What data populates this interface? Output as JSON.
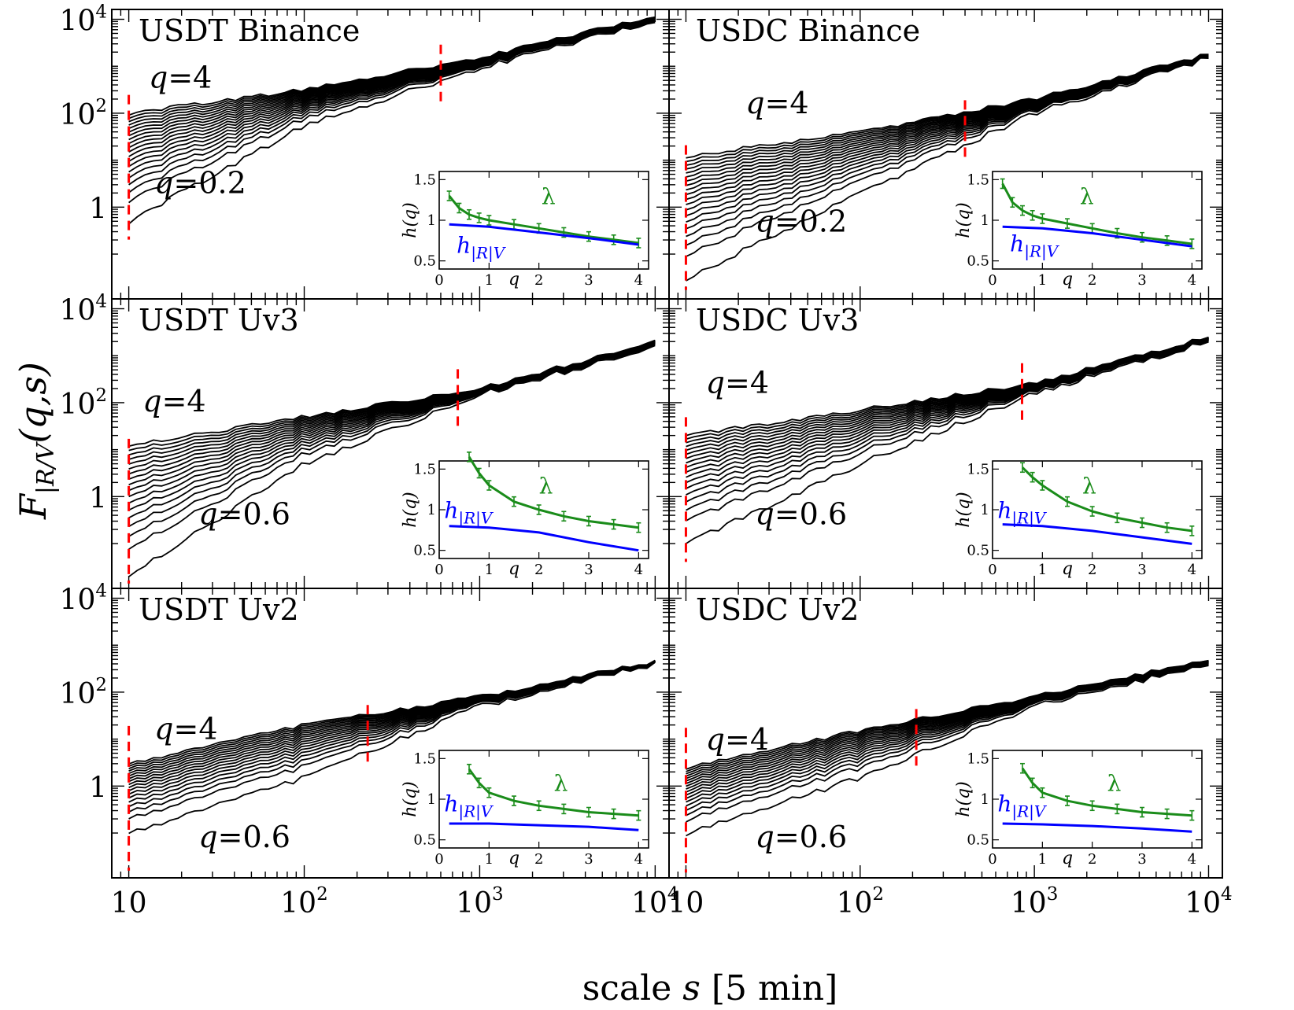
{
  "figure": {
    "ylabel": "F|R/V(q,s)",
    "ylabel_main": "F",
    "ylabel_sub": "|R/V",
    "ylabel_args": "(q,s)",
    "xlabel": "scale s [5 min]",
    "xlabel_pre": "scale ",
    "xlabel_var": "s",
    "xlabel_post": " [5 min]",
    "line_color": "#000000",
    "marker_color": "#ff0000",
    "lambda_color": "#1a8c1a",
    "h_color": "#0000ff"
  },
  "chart_data": [
    {
      "type": "line",
      "title": "USDT Binance",
      "xscale": "log",
      "yscale": "log",
      "xlim": [
        8,
        12000
      ],
      "ylim": [
        0.012,
        15000
      ],
      "x_ticks": [],
      "y_ticks": [
        "10^4",
        "10^2",
        "1"
      ],
      "q_range": [
        0.2,
        4
      ],
      "q_step": 0.2,
      "curve_q_max": {
        "x": [
          10,
          100,
          1000,
          10000
        ],
        "y": [
          100,
          320,
          1500,
          12000
        ]
      },
      "curve_q_min": {
        "x": [
          10,
          100,
          1000,
          10000
        ],
        "y": [
          0.5,
          55,
          900,
          9500
        ]
      },
      "crossover_markers_x": [
        10,
        600
      ],
      "annotations": [
        {
          "text": "q=4",
          "x": 13,
          "y": 350
        },
        {
          "text": "q=0.2",
          "x": 14,
          "y": 2
        }
      ],
      "inset": {
        "xlabel": "q",
        "ylabel": "h(q)",
        "xlim": [
          0,
          4.2
        ],
        "ylim": [
          0.4,
          1.6
        ],
        "x_ticks": [
          "0",
          "1",
          "2",
          "3",
          "4"
        ],
        "y_ticks": [
          "0.5",
          "1",
          "1.5"
        ],
        "series": [
          {
            "name": "λ",
            "x": [
              0.2,
              0.4,
              0.6,
              0.8,
              1.0,
              1.5,
              2.0,
              2.5,
              3.0,
              3.5,
              4.0
            ],
            "y": [
              1.3,
              1.15,
              1.07,
              1.03,
              1.0,
              0.95,
              0.9,
              0.85,
              0.8,
              0.76,
              0.72
            ]
          },
          {
            "name": "h|R|V",
            "x": [
              0.2,
              1.0,
              2.0,
              3.0,
              4.0
            ],
            "y": [
              0.95,
              0.92,
              0.85,
              0.78,
              0.7
            ]
          }
        ],
        "lambda_label": {
          "x": 2.05,
          "y": 1.2
        },
        "h_label": {
          "x": 0.35,
          "y": 0.6
        }
      }
    },
    {
      "type": "line",
      "title": "USDC Binance",
      "xscale": "log",
      "yscale": "log",
      "xlim": [
        8,
        12000
      ],
      "ylim": [
        0.012,
        15000
      ],
      "x_ticks": [],
      "y_ticks": [],
      "q_range": [
        0.2,
        4
      ],
      "q_step": 0.2,
      "curve_q_max": {
        "x": [
          10,
          100,
          1000,
          10000
        ],
        "y": [
          12,
          40,
          200,
          1800
        ]
      },
      "curve_q_min": {
        "x": [
          10,
          100,
          1000,
          10000
        ],
        "y": [
          0.03,
          2,
          100,
          1500
        ]
      },
      "crossover_markers_x": [
        10,
        400
      ],
      "annotations": [
        {
          "text": "q=4",
          "x": 22,
          "y": 100
        },
        {
          "text": "q=0.2",
          "x": 25,
          "y": 0.3
        }
      ],
      "inset": {
        "xlabel": "q",
        "ylabel": "h(q)",
        "xlim": [
          0,
          4.2
        ],
        "ylim": [
          0.4,
          1.6
        ],
        "x_ticks": [
          "0",
          "1",
          "2",
          "3",
          "4"
        ],
        "y_ticks": [
          "0.5",
          "1",
          "1.5"
        ],
        "series": [
          {
            "name": "λ",
            "x": [
              0.2,
              0.4,
              0.6,
              0.8,
              1.0,
              1.5,
              2.0,
              2.5,
              3.0,
              3.5,
              4.0
            ],
            "y": [
              1.45,
              1.22,
              1.12,
              1.06,
              1.02,
              0.96,
              0.9,
              0.84,
              0.79,
              0.75,
              0.71
            ]
          },
          {
            "name": "h|R|V",
            "x": [
              0.2,
              1.0,
              2.0,
              3.0,
              4.0
            ],
            "y": [
              0.92,
              0.9,
              0.84,
              0.76,
              0.68
            ]
          }
        ],
        "lambda_label": {
          "x": 1.75,
          "y": 1.2
        },
        "h_label": {
          "x": 0.35,
          "y": 0.62
        }
      }
    },
    {
      "type": "line",
      "title": "USDT Uv3",
      "xscale": "log",
      "yscale": "log",
      "xlim": [
        8,
        12000
      ],
      "ylim": [
        0.012,
        15000
      ],
      "x_ticks": [],
      "y_ticks": [
        "10^4",
        "10^2",
        "1"
      ],
      "q_range": [
        0.6,
        4
      ],
      "q_step": 0.2,
      "curve_q_max": {
        "x": [
          10,
          100,
          1000,
          10000
        ],
        "y": [
          12,
          50,
          200,
          2000
        ]
      },
      "curve_q_min": {
        "x": [
          10,
          100,
          1000,
          10000
        ],
        "y": [
          0.02,
          5,
          150,
          1500
        ]
      },
      "crossover_markers_x": [
        10,
        750
      ],
      "annotations": [
        {
          "text": "q=4",
          "x": 12,
          "y": 65
        },
        {
          "text": "q=0.6",
          "x": 25,
          "y": 0.26
        }
      ],
      "inset": {
        "xlabel": "q",
        "ylabel": "h(q)",
        "xlim": [
          0,
          4.2
        ],
        "ylim": [
          0.4,
          1.6
        ],
        "x_ticks": [
          "0",
          "1",
          "2",
          "3",
          "4"
        ],
        "y_ticks": [
          "0.5",
          "1",
          "1.5"
        ],
        "series": [
          {
            "name": "λ",
            "x": [
              0.6,
              0.8,
              1.0,
              1.5,
              2.0,
              2.5,
              3.0,
              3.5,
              4.0
            ],
            "y": [
              1.65,
              1.45,
              1.3,
              1.1,
              1.0,
              0.92,
              0.86,
              0.82,
              0.78
            ]
          },
          {
            "name": "h|R|V",
            "x": [
              0.2,
              1.0,
              2.0,
              3.0,
              4.0
            ],
            "y": [
              0.8,
              0.78,
              0.72,
              0.6,
              0.5
            ]
          }
        ],
        "lambda_label": {
          "x": 2.0,
          "y": 1.2
        },
        "h_label": {
          "x": 0.1,
          "y": 0.9
        }
      }
    },
    {
      "type": "line",
      "title": "USDC Uv3",
      "xscale": "log",
      "yscale": "log",
      "xlim": [
        8,
        12000
      ],
      "ylim": [
        0.012,
        15000
      ],
      "x_ticks": [],
      "y_ticks": [],
      "q_range": [
        0.6,
        4
      ],
      "q_step": 0.2,
      "curve_q_max": {
        "x": [
          10,
          100,
          1000,
          10000
        ],
        "y": [
          20,
          70,
          260,
          2500
        ]
      },
      "curve_q_min": {
        "x": [
          10,
          100,
          1000,
          10000
        ],
        "y": [
          0.1,
          5,
          160,
          2000
        ]
      },
      "crossover_markers_x": [
        10,
        850
      ],
      "annotations": [
        {
          "text": "q=4",
          "x": 13,
          "y": 160
        },
        {
          "text": "q=0.6",
          "x": 25,
          "y": 0.26
        }
      ],
      "inset": {
        "xlabel": "q",
        "ylabel": "h(q)",
        "xlim": [
          0,
          4.2
        ],
        "ylim": [
          0.4,
          1.6
        ],
        "x_ticks": [
          "0",
          "1",
          "2",
          "3",
          "4"
        ],
        "y_ticks": [
          "0.5",
          "1",
          "1.5"
        ],
        "series": [
          {
            "name": "λ",
            "x": [
              0.6,
              0.8,
              1.0,
              1.5,
              2.0,
              2.5,
              3.0,
              3.5,
              4.0
            ],
            "y": [
              1.52,
              1.4,
              1.3,
              1.1,
              0.98,
              0.9,
              0.84,
              0.78,
              0.74
            ]
          },
          {
            "name": "h|R|V",
            "x": [
              0.2,
              1.0,
              2.0,
              3.0,
              4.0
            ],
            "y": [
              0.82,
              0.8,
              0.74,
              0.66,
              0.58
            ]
          }
        ],
        "lambda_label": {
          "x": 1.8,
          "y": 1.2
        },
        "h_label": {
          "x": 0.1,
          "y": 0.9
        }
      }
    },
    {
      "type": "line",
      "title": "USDT Uv2",
      "xscale": "log",
      "yscale": "log",
      "xlim": [
        8,
        12000
      ],
      "ylim": [
        0.012,
        15000
      ],
      "x_ticks": [
        "10",
        "10^2",
        "10^3",
        "10^4"
      ],
      "y_ticks": [
        "10^4",
        "10^2",
        "1"
      ],
      "q_range": [
        0.6,
        4
      ],
      "q_step": 0.2,
      "curve_q_max": {
        "x": [
          10,
          100,
          1000,
          10000
        ],
        "y": [
          3,
          20,
          80,
          450
        ]
      },
      "curve_q_min": {
        "x": [
          10,
          100,
          1000,
          10000
        ],
        "y": [
          0.1,
          1.5,
          50,
          400
        ]
      },
      "crossover_markers_x": [
        10,
        230
      ],
      "annotations": [
        {
          "text": "q=4",
          "x": 14,
          "y": 10
        },
        {
          "text": "q=0.6",
          "x": 25,
          "y": 0.05
        }
      ],
      "inset": {
        "xlabel": "q",
        "ylabel": "h(q)",
        "xlim": [
          0,
          4.2
        ],
        "ylim": [
          0.4,
          1.6
        ],
        "x_ticks": [
          "0",
          "1",
          "2",
          "3",
          "4"
        ],
        "y_ticks": [
          "0.5",
          "1",
          "1.5"
        ],
        "series": [
          {
            "name": "λ",
            "x": [
              0.6,
              0.8,
              1.0,
              1.5,
              2.0,
              2.5,
              3.0,
              3.5,
              4.0
            ],
            "y": [
              1.37,
              1.2,
              1.08,
              0.98,
              0.92,
              0.88,
              0.84,
              0.82,
              0.8
            ]
          },
          {
            "name": "h|R|V",
            "x": [
              0.2,
              1.0,
              2.0,
              3.0,
              4.0
            ],
            "y": [
              0.7,
              0.7,
              0.68,
              0.66,
              0.62
            ]
          }
        ],
        "lambda_label": {
          "x": 2.3,
          "y": 1.1
        },
        "h_label": {
          "x": 0.1,
          "y": 0.85
        }
      }
    },
    {
      "type": "line",
      "title": "USDC Uv2",
      "xscale": "log",
      "yscale": "log",
      "xlim": [
        8,
        12000
      ],
      "ylim": [
        0.012,
        15000
      ],
      "x_ticks": [
        "10",
        "10^2",
        "10^3",
        "10^4"
      ],
      "y_ticks": [],
      "q_range": [
        0.6,
        4
      ],
      "q_step": 0.2,
      "curve_q_max": {
        "x": [
          10,
          100,
          1000,
          10000
        ],
        "y": [
          2.5,
          15,
          80,
          500
        ]
      },
      "curve_q_min": {
        "x": [
          10,
          100,
          1000,
          10000
        ],
        "y": [
          0.1,
          1.5,
          50,
          400
        ]
      },
      "crossover_markers_x": [
        10,
        210
      ],
      "annotations": [
        {
          "text": "q=4",
          "x": 13,
          "y": 6
        },
        {
          "text": "q=0.6",
          "x": 25,
          "y": 0.05
        }
      ],
      "inset": {
        "xlabel": "q",
        "ylabel": "h(q)",
        "xlim": [
          0,
          4.2
        ],
        "ylim": [
          0.4,
          1.6
        ],
        "x_ticks": [
          "0",
          "1",
          "2",
          "3",
          "4"
        ],
        "y_ticks": [
          "0.5",
          "1",
          "1.5"
        ],
        "series": [
          {
            "name": "λ",
            "x": [
              0.6,
              0.8,
              1.0,
              1.5,
              2.0,
              2.5,
              3.0,
              3.5,
              4.0
            ],
            "y": [
              1.38,
              1.2,
              1.08,
              0.98,
              0.92,
              0.88,
              0.84,
              0.82,
              0.8
            ]
          },
          {
            "name": "h|R|V",
            "x": [
              0.2,
              1.0,
              2.0,
              3.0,
              4.0
            ],
            "y": [
              0.7,
              0.69,
              0.67,
              0.64,
              0.6
            ]
          }
        ],
        "lambda_label": {
          "x": 2.3,
          "y": 1.1
        },
        "h_label": {
          "x": 0.1,
          "y": 0.85
        }
      }
    }
  ]
}
